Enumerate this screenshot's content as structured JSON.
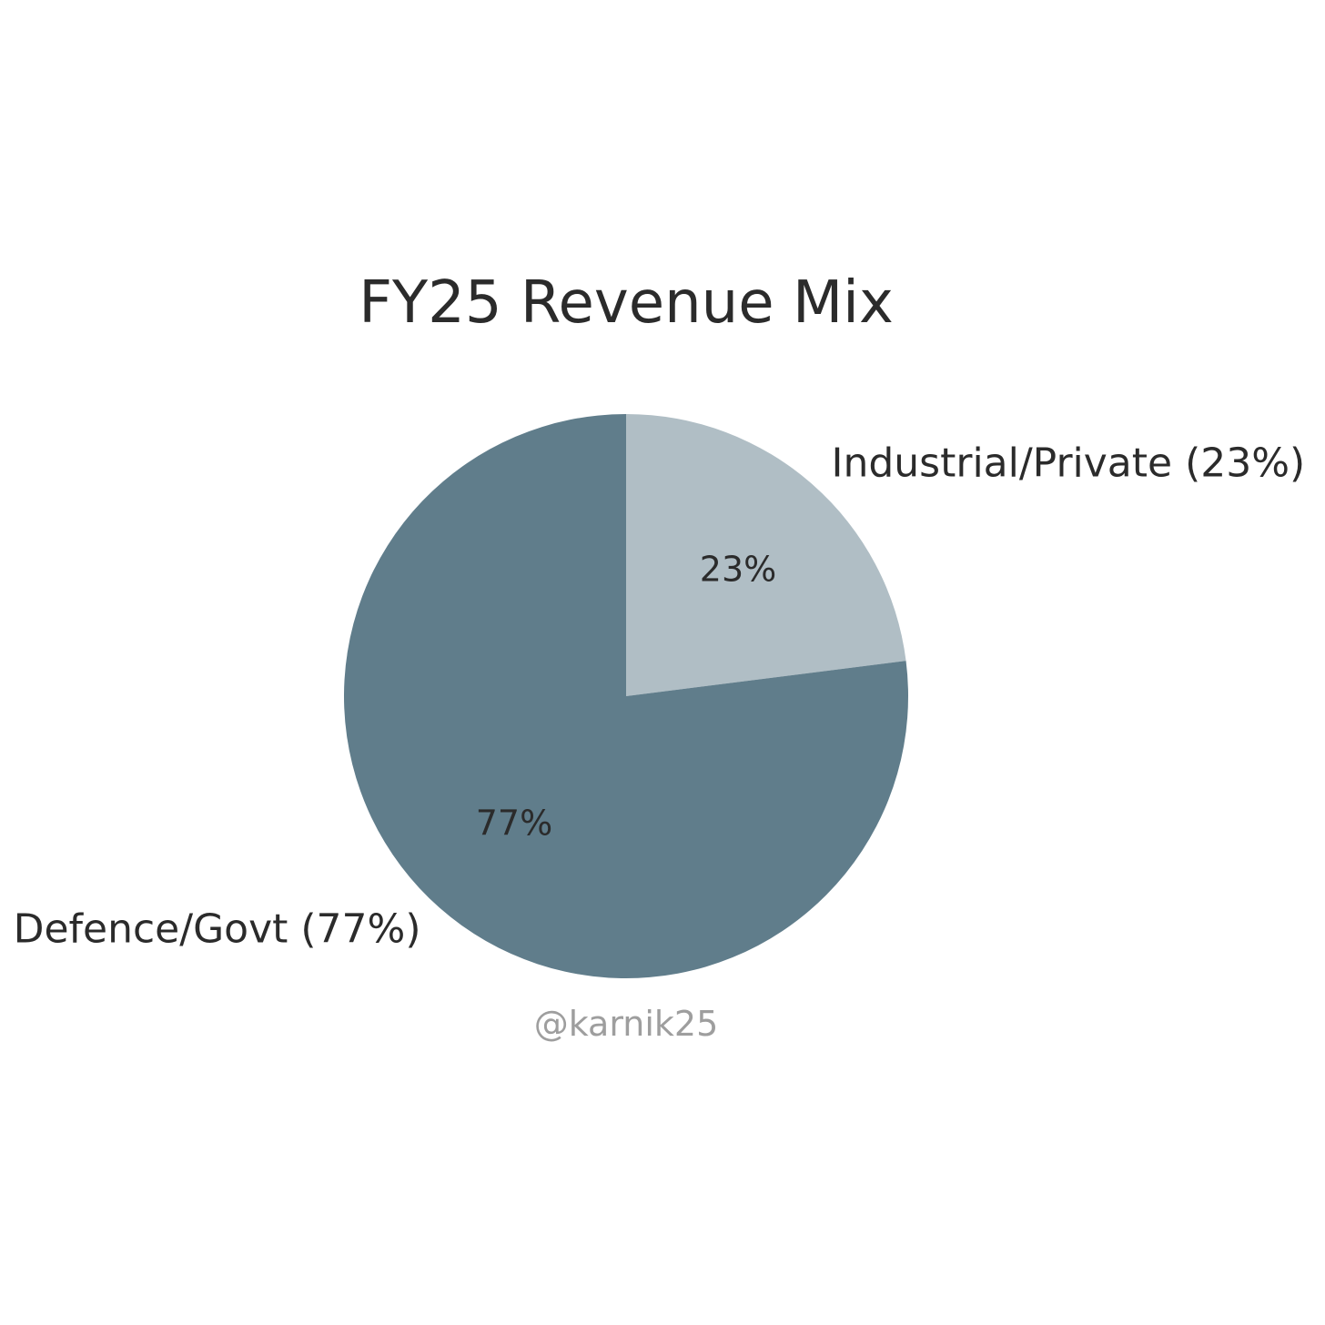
{
  "chart_data": {
    "type": "pie",
    "title": "FY25 Revenue Mix",
    "start_angle_deg": 90,
    "direction": "clockwise",
    "slices": [
      {
        "name": "Industrial/Private",
        "value": 23,
        "label": "Industrial/Private (23%)",
        "pct_label": "23%",
        "color": "#b0bec5"
      },
      {
        "name": "Defence/Govt",
        "value": 77,
        "label": "Defence/Govt (77%)",
        "pct_label": "77%",
        "color": "#607d8b"
      }
    ]
  },
  "watermark": {
    "text": "@karnik25",
    "color": "#9e9e9e"
  }
}
